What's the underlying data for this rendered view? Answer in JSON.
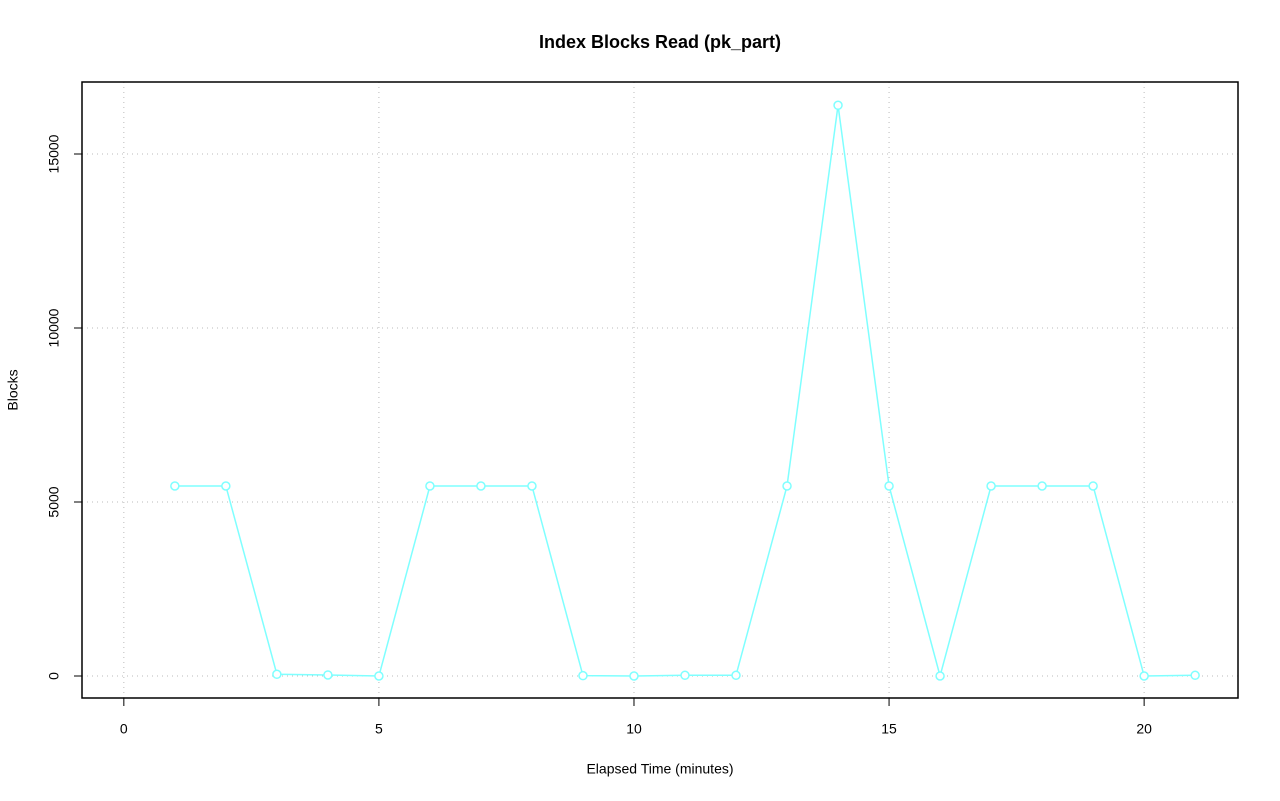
{
  "chart_data": {
    "type": "line",
    "title": "Index Blocks Read (pk_part)",
    "x_label": "Elapsed Time (minutes)",
    "y_label": "Blocks",
    "x": [
      1,
      2,
      3,
      4,
      5,
      6,
      7,
      8,
      9,
      10,
      11,
      12,
      13,
      14,
      15,
      16,
      17,
      18,
      19,
      20,
      21
    ],
    "series": [
      {
        "name": "pk_part",
        "color": "#7fffff",
        "values": [
          5460,
          5460,
          50,
          30,
          0,
          5460,
          5460,
          5460,
          10,
          0,
          20,
          20,
          5460,
          16400,
          5460,
          0,
          5460,
          5460,
          5460,
          0,
          20
        ]
      }
    ],
    "xlim": [
      -0.82,
      21.84
    ],
    "xticks": [
      0,
      5,
      10,
      15,
      20
    ],
    "ylim": [
      -632,
      17069
    ],
    "yticks": [
      0,
      5000,
      10000,
      15000
    ],
    "grid": true
  }
}
